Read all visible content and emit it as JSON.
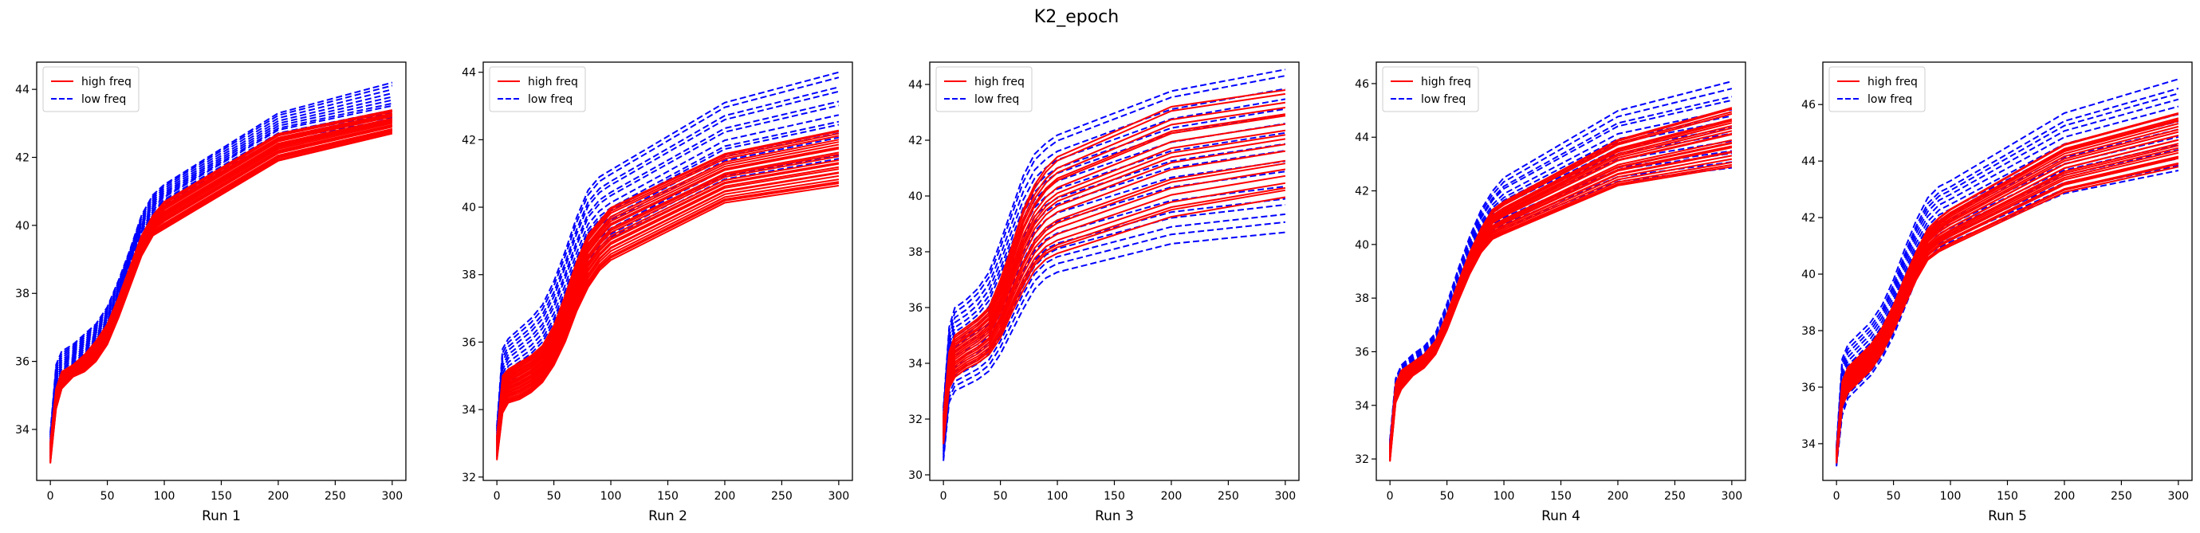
{
  "figure_title": "K2_epoch",
  "colors": {
    "high": "#ff0000",
    "low": "#0000ff",
    "axes": "#000000"
  },
  "legend": {
    "placement": "upper-left",
    "entries": [
      "high freq",
      "low freq"
    ]
  },
  "chart_data": [
    {
      "type": "line",
      "xlabel": "Run 1",
      "xlim": [
        -12,
        312
      ],
      "ylim": [
        32.5,
        44.8
      ],
      "xticks": [
        0,
        50,
        100,
        150,
        200,
        250,
        300
      ],
      "yticks": [
        34,
        36,
        38,
        40,
        42,
        44
      ],
      "x": [
        0,
        5,
        10,
        20,
        30,
        40,
        50,
        60,
        70,
        80,
        90,
        100,
        200,
        300
      ],
      "high": {
        "name": "high freq",
        "count": 24,
        "low": [
          33.0,
          34.6,
          35.2,
          35.55,
          35.7,
          36.0,
          36.5,
          37.3,
          38.2,
          39.1,
          39.7,
          39.9,
          41.9,
          42.7
        ],
        "high": [
          33.6,
          35.2,
          35.7,
          35.9,
          36.2,
          36.6,
          37.1,
          37.9,
          38.8,
          39.7,
          40.3,
          40.7,
          42.7,
          43.4
        ]
      },
      "low": {
        "name": "low freq",
        "count": 12,
        "low": [
          33.2,
          35.2,
          35.6,
          35.9,
          36.2,
          36.6,
          37.1,
          37.9,
          38.9,
          39.8,
          40.3,
          40.6,
          42.5,
          43.1
        ],
        "high": [
          33.9,
          35.9,
          36.3,
          36.5,
          36.8,
          37.1,
          37.6,
          38.4,
          39.3,
          40.3,
          40.9,
          41.2,
          43.3,
          44.2
        ]
      }
    },
    {
      "type": "line",
      "xlabel": "Run 2",
      "xlim": [
        -12,
        312
      ],
      "ylim": [
        31.9,
        44.3
      ],
      "xticks": [
        0,
        50,
        100,
        150,
        200,
        250,
        300
      ],
      "yticks": [
        32,
        34,
        36,
        38,
        40,
        42,
        44
      ],
      "x": [
        0,
        5,
        10,
        20,
        30,
        40,
        50,
        60,
        70,
        80,
        90,
        100,
        200,
        300
      ],
      "high": {
        "name": "high freq",
        "count": 24,
        "low": [
          32.5,
          33.9,
          34.2,
          34.3,
          34.5,
          34.8,
          35.3,
          36.0,
          36.9,
          37.6,
          38.1,
          38.4,
          40.1,
          40.6
        ],
        "high": [
          33.2,
          35.0,
          35.2,
          35.4,
          35.6,
          35.9,
          36.5,
          37.4,
          38.4,
          39.2,
          39.6,
          40.0,
          41.6,
          42.3
        ]
      },
      "low": {
        "name": "low freq",
        "count": 14,
        "low": [
          32.6,
          34.2,
          34.6,
          34.8,
          35.0,
          35.3,
          35.8,
          36.6,
          37.5,
          38.4,
          38.8,
          39.1,
          40.8,
          41.4
        ],
        "high": [
          33.5,
          35.8,
          36.1,
          36.4,
          36.7,
          37.1,
          37.8,
          38.7,
          39.7,
          40.5,
          40.9,
          41.1,
          43.1,
          44.0
        ]
      }
    },
    {
      "type": "line",
      "xlabel": "Run 3",
      "xlim": [
        -12,
        312
      ],
      "ylim": [
        29.8,
        44.8
      ],
      "xticks": [
        0,
        50,
        100,
        150,
        200,
        250,
        300
      ],
      "yticks": [
        30,
        32,
        34,
        36,
        38,
        40,
        42,
        44
      ],
      "x": [
        0,
        5,
        10,
        20,
        30,
        40,
        50,
        60,
        70,
        80,
        90,
        100,
        200,
        300
      ],
      "high": {
        "name": "high freq",
        "count": 20,
        "low": [
          31.1,
          33.1,
          33.5,
          33.8,
          34.0,
          34.3,
          34.9,
          35.8,
          36.6,
          37.3,
          37.7,
          37.9,
          39.2,
          39.9
        ],
        "high": [
          32.1,
          34.4,
          35.0,
          35.3,
          35.6,
          36.0,
          37.0,
          38.2,
          39.5,
          40.4,
          41.0,
          41.4,
          43.2,
          43.8
        ]
      },
      "low": {
        "name": "low freq",
        "count": 18,
        "low": [
          30.5,
          32.6,
          33.0,
          33.2,
          33.4,
          33.7,
          34.3,
          35.1,
          35.9,
          36.6,
          37.0,
          37.2,
          38.2,
          38.6
        ],
        "high": [
          32.4,
          35.3,
          36.0,
          36.3,
          36.7,
          37.3,
          38.4,
          39.6,
          40.8,
          41.6,
          42.0,
          42.3,
          43.9,
          44.7
        ]
      }
    },
    {
      "type": "line",
      "xlabel": "Run 4",
      "xlim": [
        -12,
        312
      ],
      "ylim": [
        31.2,
        46.8
      ],
      "xticks": [
        0,
        50,
        100,
        150,
        200,
        250,
        300
      ],
      "yticks": [
        32,
        34,
        36,
        38,
        40,
        42,
        44,
        46
      ],
      "x": [
        0,
        5,
        10,
        20,
        30,
        40,
        50,
        60,
        70,
        80,
        90,
        100,
        200,
        300
      ],
      "high": {
        "name": "high freq",
        "count": 24,
        "low": [
          31.9,
          34.1,
          34.6,
          35.1,
          35.4,
          35.9,
          36.8,
          37.9,
          38.9,
          39.7,
          40.2,
          40.4,
          42.2,
          42.9
        ],
        "high": [
          32.5,
          34.8,
          35.3,
          35.6,
          35.9,
          36.4,
          37.4,
          38.6,
          39.7,
          40.6,
          41.3,
          41.6,
          43.9,
          45.1
        ]
      },
      "low": {
        "name": "low freq",
        "count": 14,
        "low": [
          32.2,
          34.3,
          34.8,
          35.2,
          35.5,
          36.0,
          36.9,
          38.0,
          39.1,
          39.9,
          40.4,
          40.6,
          42.3,
          42.8
        ],
        "high": [
          32.7,
          35.0,
          35.5,
          35.9,
          36.2,
          36.7,
          37.8,
          39.1,
          40.3,
          41.3,
          42.0,
          42.5,
          45.0,
          46.1
        ]
      }
    },
    {
      "type": "line",
      "xlabel": "Run 5",
      "xlim": [
        -12,
        312
      ],
      "ylim": [
        32.7,
        47.5
      ],
      "xticks": [
        0,
        50,
        100,
        150,
        200,
        250,
        300
      ],
      "yticks": [
        34,
        36,
        38,
        40,
        42,
        44,
        46
      ],
      "x": [
        0,
        5,
        10,
        20,
        30,
        40,
        50,
        60,
        70,
        80,
        90,
        100,
        200,
        300
      ],
      "high": {
        "name": "high freq",
        "count": 24,
        "low": [
          33.3,
          35.3,
          35.8,
          36.2,
          36.6,
          37.2,
          38.0,
          38.9,
          39.8,
          40.5,
          40.8,
          41.0,
          42.9,
          43.8
        ],
        "high": [
          33.7,
          36.2,
          36.7,
          37.1,
          37.5,
          38.1,
          38.9,
          39.9,
          40.8,
          41.6,
          42.0,
          42.3,
          44.6,
          45.7
        ]
      },
      "low": {
        "name": "low freq",
        "count": 14,
        "low": [
          33.2,
          35.0,
          35.6,
          36.0,
          36.4,
          37.0,
          37.8,
          38.8,
          39.8,
          40.5,
          40.9,
          41.1,
          42.8,
          43.6
        ],
        "high": [
          33.9,
          37.0,
          37.5,
          37.9,
          38.3,
          38.9,
          39.8,
          40.9,
          41.9,
          42.7,
          43.1,
          43.3,
          45.7,
          46.9
        ]
      }
    }
  ]
}
